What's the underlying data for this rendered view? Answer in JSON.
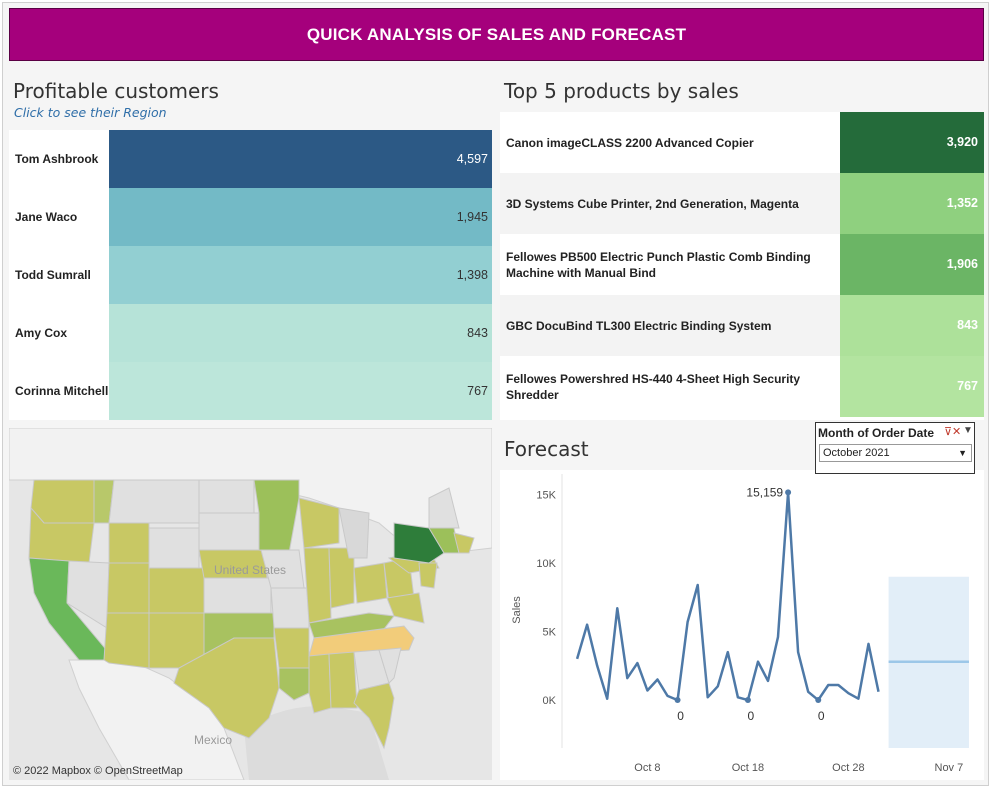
{
  "banner": {
    "title": "QUICK ANALYSIS OF SALES AND FORECAST"
  },
  "customers": {
    "title": "Profitable customers",
    "subtitle": "Click to see their Region",
    "rows": [
      {
        "name": "Tom Ashbrook",
        "value": "4,597",
        "color": "#2c5985",
        "text_color": "#ffffff"
      },
      {
        "name": "Jane Waco",
        "value": "1,945",
        "color": "#73bac6",
        "text_color": "#333333"
      },
      {
        "name": "Todd Sumrall",
        "value": "1,398",
        "color": "#92cfd2",
        "text_color": "#333333"
      },
      {
        "name": "Amy Cox",
        "value": "843",
        "color": "#b6e3d8",
        "text_color": "#333333"
      },
      {
        "name": "Corinna Mitchell",
        "value": "767",
        "color": "#bce6da",
        "text_color": "#333333"
      }
    ]
  },
  "products": {
    "title": "Top 5 products by sales",
    "rows": [
      {
        "name": "Canon imageCLASS 2200 Advanced Copier",
        "value": "3,920",
        "color": "#246b3a",
        "row_bg": "#ffffff"
      },
      {
        "name": "3D Systems Cube Printer, 2nd Generation, Magenta",
        "value": "1,352",
        "color": "#8fd07f",
        "row_bg": "#f3f3f3"
      },
      {
        "name": "Fellowes PB500 Electric Punch Plastic Comb Binding Machine with Manual Bind",
        "value": "1,906",
        "color": "#6bb565",
        "row_bg": "#ffffff"
      },
      {
        "name": "GBC DocuBind TL300 Electric Binding System",
        "value": "843",
        "color": "#ade19a",
        "row_bg": "#f3f3f3"
      },
      {
        "name": "Fellowes Powershred HS-440 4-Sheet High Security Shredder",
        "value": "767",
        "color": "#b3e4a0",
        "row_bg": "#ffffff"
      }
    ]
  },
  "map": {
    "credit": "© 2022 Mapbox © OpenStreetMap",
    "label_country": "United States",
    "label_mexico": "Mexico"
  },
  "filter": {
    "title": "Month of Order Date",
    "selected": "October 2021"
  },
  "forecast": {
    "title": "Forecast"
  },
  "chart_data": {
    "type": "line",
    "ylabel": "Sales",
    "ylim": [
      -3500,
      16500
    ],
    "yticks": [
      0,
      5000,
      10000,
      15000
    ],
    "ytick_labels": [
      "0K",
      "5K",
      "10K",
      "15K"
    ],
    "xtick_labels": [
      "Oct 8",
      "Oct 18",
      "Oct 28",
      "Nov 7"
    ],
    "xtick_days": [
      8,
      18,
      28,
      38
    ],
    "xlim": [
      -0.5,
      40.5
    ],
    "series": [
      {
        "days": [
          1,
          2,
          3,
          4,
          5,
          6,
          7,
          8,
          9,
          10,
          11,
          12,
          13,
          14,
          15,
          16,
          17,
          18,
          19,
          20,
          21,
          22,
          23,
          24,
          25,
          26,
          27,
          28,
          29,
          30,
          31
        ],
        "values": [
          3000,
          5500,
          2500,
          100,
          6700,
          1600,
          2700,
          700,
          1500,
          300,
          0,
          5700,
          8400,
          200,
          1000,
          3500,
          200,
          0,
          2800,
          1400,
          4600,
          15159,
          3500,
          600,
          0,
          1100,
          1100,
          500,
          100,
          4100,
          600
        ]
      }
    ],
    "forecast_band": {
      "start_day": 32,
      "end_day": 40,
      "low": -3500,
      "high": 9000,
      "estimate": 2800
    },
    "annotations": [
      {
        "day": 22,
        "value": 15159,
        "label": "15,159"
      },
      {
        "day": 11,
        "value": 0,
        "label": "0"
      },
      {
        "day": 18,
        "value": 0,
        "label": "0"
      },
      {
        "day": 25,
        "value": 0,
        "label": "0"
      }
    ]
  }
}
